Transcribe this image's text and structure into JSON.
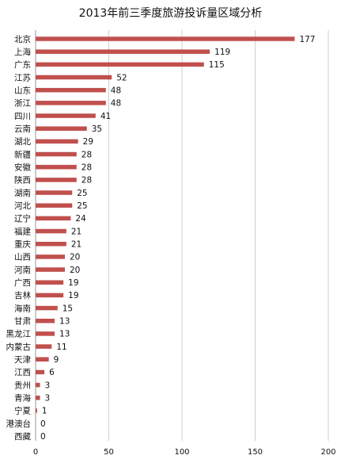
{
  "chart_data": {
    "type": "bar",
    "orientation": "horizontal",
    "title": "2013年前三季度旅游投诉量区域分析",
    "categories": [
      "北京",
      "上海",
      "广东",
      "江苏",
      "山东",
      "浙江",
      "四川",
      "云南",
      "湖北",
      "新疆",
      "安徽",
      "陕西",
      "湖南",
      "河北",
      "辽宁",
      "福建",
      "重庆",
      "山西",
      "河南",
      "广西",
      "吉林",
      "海南",
      "甘肃",
      "黑龙江",
      "内蒙古",
      "天津",
      "江西",
      "贵州",
      "青海",
      "宁夏",
      "港澳台",
      "西藏"
    ],
    "values": [
      177,
      119,
      115,
      52,
      48,
      48,
      41,
      35,
      29,
      28,
      28,
      28,
      25,
      25,
      24,
      21,
      21,
      20,
      20,
      19,
      19,
      15,
      13,
      13,
      11,
      9,
      6,
      3,
      3,
      1,
      0,
      0
    ],
    "xlim": [
      0,
      200
    ],
    "x_ticks": [
      0,
      50,
      100,
      150,
      200
    ],
    "grid": "vertical",
    "legend": "none",
    "bar_color": "#c0504d"
  }
}
